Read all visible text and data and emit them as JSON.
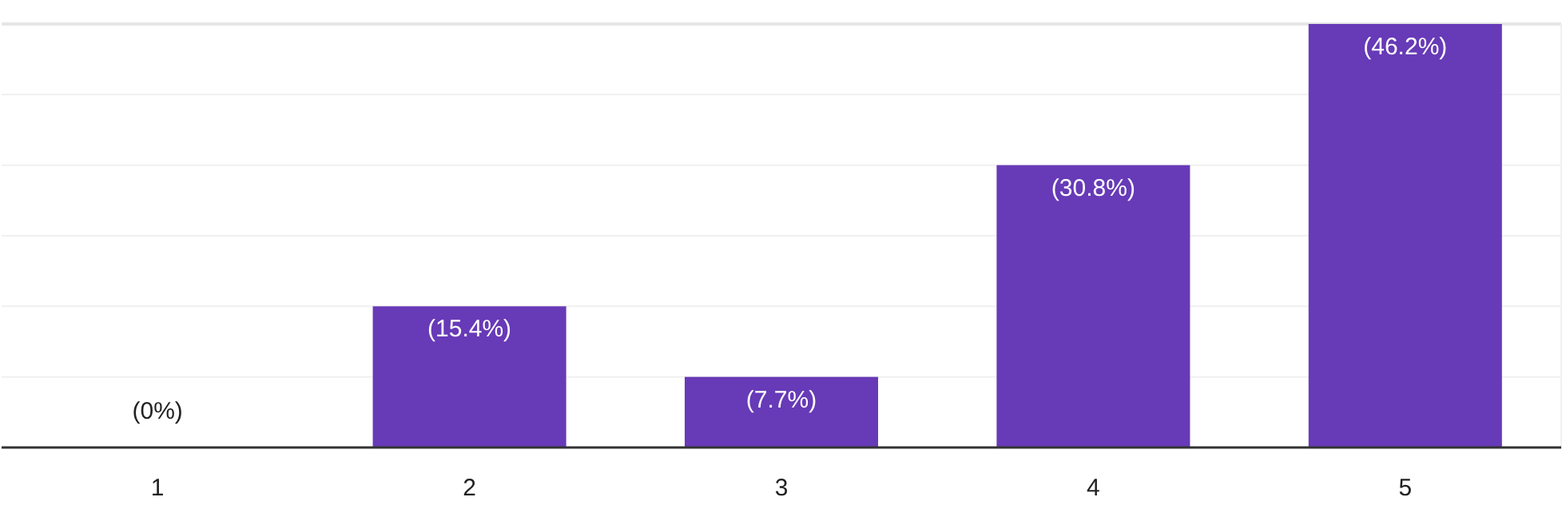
{
  "chart_data": {
    "type": "bar",
    "categories": [
      "1",
      "2",
      "3",
      "4",
      "5"
    ],
    "values": [
      0,
      15.4,
      7.7,
      30.8,
      46.2
    ],
    "value_labels": [
      "(0%)",
      "(15.4%)",
      "(7.7%)",
      "(30.8%)",
      "(46.2%)"
    ],
    "color": "#673ab7",
    "ylim": [
      0,
      46.2
    ],
    "yticks": [
      {
        "value": 0,
        "label": null
      },
      {
        "value": 7.7,
        "label": null
      },
      {
        "value": 15.4,
        "label": null
      },
      {
        "value": 23.1,
        "label": null
      },
      {
        "value": 30.8,
        "label": null
      },
      {
        "value": 38.5,
        "label": null
      },
      {
        "value": 46.2,
        "label": null
      }
    ],
    "grid": "y",
    "tick_labels": "x"
  }
}
